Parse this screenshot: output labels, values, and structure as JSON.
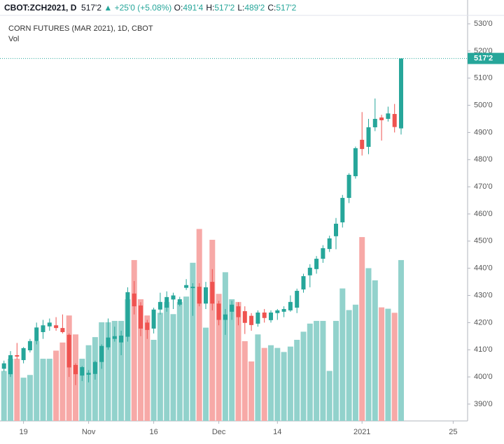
{
  "header": {
    "symbol": "CBOT:ZCH2021, D",
    "last": "517'2",
    "change": "+25'0 (+5.08%)",
    "ohlc": [
      {
        "label": "O:",
        "value": "491'4"
      },
      {
        "label": "H:",
        "value": "517'2"
      },
      {
        "label": "L:",
        "value": "489'2"
      },
      {
        "label": "C:",
        "value": "517'2"
      }
    ]
  },
  "chart_data": {
    "type": "candlestick",
    "title": "CORN FUTURES (MAR 2021), 1D, CBOT",
    "categories": [
      null,
      null,
      null,
      "19",
      null,
      null,
      null,
      null,
      null,
      null,
      null,
      null,
      null,
      "Nov",
      null,
      null,
      null,
      null,
      null,
      null,
      null,
      null,
      null,
      "16",
      null,
      null,
      null,
      null,
      null,
      null,
      null,
      null,
      null,
      "Dec",
      null,
      null,
      null,
      null,
      null,
      null,
      null,
      null,
      "14",
      null,
      null,
      null,
      null,
      null,
      null,
      null,
      null,
      null,
      null,
      null,
      null,
      "2021",
      null,
      null,
      null,
      null,
      null,
      null,
      null,
      null,
      null,
      null,
      null,
      null,
      null,
      "25"
    ],
    "open": [
      403,
      401,
      408,
      406.2,
      409.8,
      413.2,
      416.5,
      418.6,
      419,
      418,
      415.5,
      404.4,
      400.5,
      400.8,
      401.1,
      405.5,
      410.9,
      414,
      412.7,
      414.8,
      430.7,
      426.3,
      420,
      417.8,
      424.8,
      425.5,
      428.5,
      426.6,
      432.8,
      432.7,
      433.2,
      427,
      435,
      427,
      421,
      424,
      426,
      424.2,
      422.5,
      419.6,
      423.7,
      420.9,
      423.5,
      424,
      424.5,
      425.5,
      432.2,
      437.4,
      439.7,
      443.5,
      447.1,
      451.8,
      456.9,
      465.9,
      473.9,
      487.3,
      484.7,
      491.9,
      495.5,
      495,
      496.8,
      491.5,
      null,
      null,
      null,
      null,
      null,
      null,
      null,
      null
    ],
    "high": [
      406,
      409.5,
      412.5,
      411,
      414,
      420,
      421,
      421.5,
      422,
      423,
      416,
      405,
      404,
      402.5,
      406,
      412,
      421.5,
      418.5,
      417,
      433,
      435.3,
      427.5,
      421,
      425.5,
      431,
      431.5,
      431,
      429.5,
      436,
      434.5,
      434.5,
      435,
      439.7,
      428,
      425,
      428,
      427.5,
      426,
      423.5,
      424.5,
      425,
      424.5,
      425,
      426,
      430,
      432.5,
      438,
      441.5,
      444.5,
      448.5,
      452,
      458.5,
      467,
      475,
      484.8,
      497.5,
      495,
      502.5,
      496.5,
      499.5,
      500.5,
      517.25,
      null,
      null,
      null,
      null,
      null,
      null,
      null,
      null
    ],
    "low": [
      402,
      400,
      406.5,
      405,
      409,
      412,
      414,
      417,
      417,
      416,
      400,
      397,
      398.5,
      398,
      399,
      403,
      410,
      413,
      408,
      413,
      423,
      415,
      414,
      416,
      423,
      424,
      425,
      426,
      432,
      422.5,
      426,
      425,
      424.5,
      419,
      415.5,
      421,
      419,
      415.8,
      417,
      418.5,
      420,
      420,
      421,
      422,
      424,
      423.5,
      431,
      433,
      438,
      442,
      446,
      447,
      455,
      464,
      473,
      481.5,
      482,
      490.5,
      487,
      494,
      490,
      489.25,
      null,
      null,
      null,
      null,
      null,
      null,
      null,
      null
    ],
    "close": [
      405,
      408,
      407.5,
      410.6,
      413.2,
      418.2,
      419,
      420,
      418,
      416.5,
      403.5,
      401,
      403.6,
      401.5,
      405.5,
      411.4,
      414.5,
      415,
      415.2,
      431.2,
      426,
      417.8,
      417.3,
      424.8,
      427.6,
      429.4,
      430,
      428.6,
      433.8,
      433.2,
      427,
      433,
      427,
      421,
      423,
      426.6,
      422,
      419.9,
      419.1,
      423.7,
      421.7,
      423.7,
      424.5,
      425,
      427.6,
      431.7,
      437.1,
      440.2,
      443.5,
      447.4,
      451,
      456.4,
      465.9,
      474.4,
      484.2,
      483.9,
      491.9,
      495,
      494.5,
      497,
      492,
      517.25,
      null,
      null,
      null,
      null,
      null,
      null,
      null,
      null
    ],
    "volume": {
      "name": "Vol",
      "axis": "y2",
      "values": [
        37,
        46,
        46,
        32,
        34,
        59,
        46,
        46,
        52,
        58,
        78,
        64,
        46,
        56,
        62,
        73,
        73,
        74,
        74,
        90,
        119,
        90,
        78,
        60,
        80,
        88,
        79,
        88,
        92,
        117,
        142,
        69,
        134,
        94,
        110,
        90,
        88,
        59,
        44,
        64,
        54,
        56,
        54,
        51,
        55,
        60,
        66,
        72,
        74,
        74,
        37,
        74,
        98,
        82,
        86,
        136,
        113,
        104,
        84,
        83,
        80,
        119,
        null,
        null,
        null,
        null,
        null,
        null,
        null,
        null
      ]
    },
    "up_color": "#26a69a",
    "down_color": "#ef5350",
    "volume_up_color": "#92d2cc",
    "volume_down_color": "#f7a9a7",
    "ylim": [
      383.8,
      533.1
    ],
    "yticks": [
      {
        "value": 390,
        "label": "390'0"
      },
      {
        "value": 400,
        "label": "400'0"
      },
      {
        "value": 410,
        "label": "410'0"
      },
      {
        "value": 420,
        "label": "420'0"
      },
      {
        "value": 430,
        "label": "430'0"
      },
      {
        "value": 440,
        "label": "440'0"
      },
      {
        "value": 450,
        "label": "450'0"
      },
      {
        "value": 460,
        "label": "460'0"
      },
      {
        "value": 470,
        "label": "470'0"
      },
      {
        "value": 480,
        "label": "480'0"
      },
      {
        "value": 490,
        "label": "490'0"
      },
      {
        "value": 500,
        "label": "500'0"
      },
      {
        "value": 510,
        "label": "510'0"
      },
      {
        "value": 520,
        "label": "520'0"
      },
      {
        "value": 530,
        "label": "530'0"
      }
    ],
    "y2lim": [
      0,
      300
    ],
    "last_price": {
      "value": 517.25,
      "label": "517'2"
    },
    "grid": false
  }
}
